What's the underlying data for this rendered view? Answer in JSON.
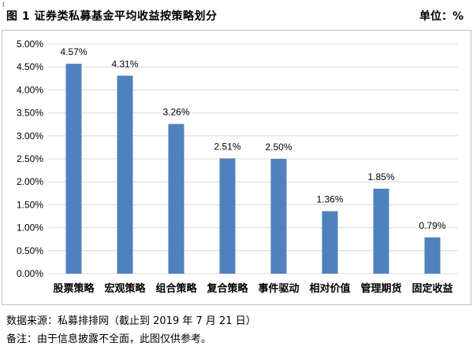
{
  "header": {
    "cursor_glyph": "I",
    "title": "图 1   证券类私募基金平均收益按策略划分",
    "unit": "单位：%"
  },
  "chart_data": {
    "type": "bar",
    "title": "",
    "xlabel": "",
    "ylabel": "",
    "categories": [
      "股票策略",
      "宏观策略",
      "组合策略",
      "复合策略",
      "事件驱动",
      "相对价值",
      "管理期货",
      "固定收益"
    ],
    "values": [
      4.57,
      4.31,
      3.26,
      2.51,
      2.5,
      1.36,
      1.85,
      0.79
    ],
    "value_labels": [
      "4.57%",
      "4.31%",
      "3.26%",
      "2.51%",
      "2.50%",
      "1.36%",
      "1.85%",
      "0.79%"
    ],
    "ylim": [
      0,
      5
    ],
    "yticks": [
      0,
      0.5,
      1.0,
      1.5,
      2.0,
      2.5,
      3.0,
      3.5,
      4.0,
      4.5,
      5.0
    ],
    "ytick_labels": [
      "0.00%",
      "0.50%",
      "1.00%",
      "1.50%",
      "2.00%",
      "2.50%",
      "3.00%",
      "3.50%",
      "4.00%",
      "4.50%",
      "5.00%"
    ],
    "grid": true,
    "bar_color": "#4f81bd",
    "grid_color": "#d9d9d9"
  },
  "footer": {
    "source": "数据来源：私募排排网（截止到 2019 年 7 月 21 日）",
    "note": "备注：由于信息披露不全面，此图仅供参考。"
  }
}
